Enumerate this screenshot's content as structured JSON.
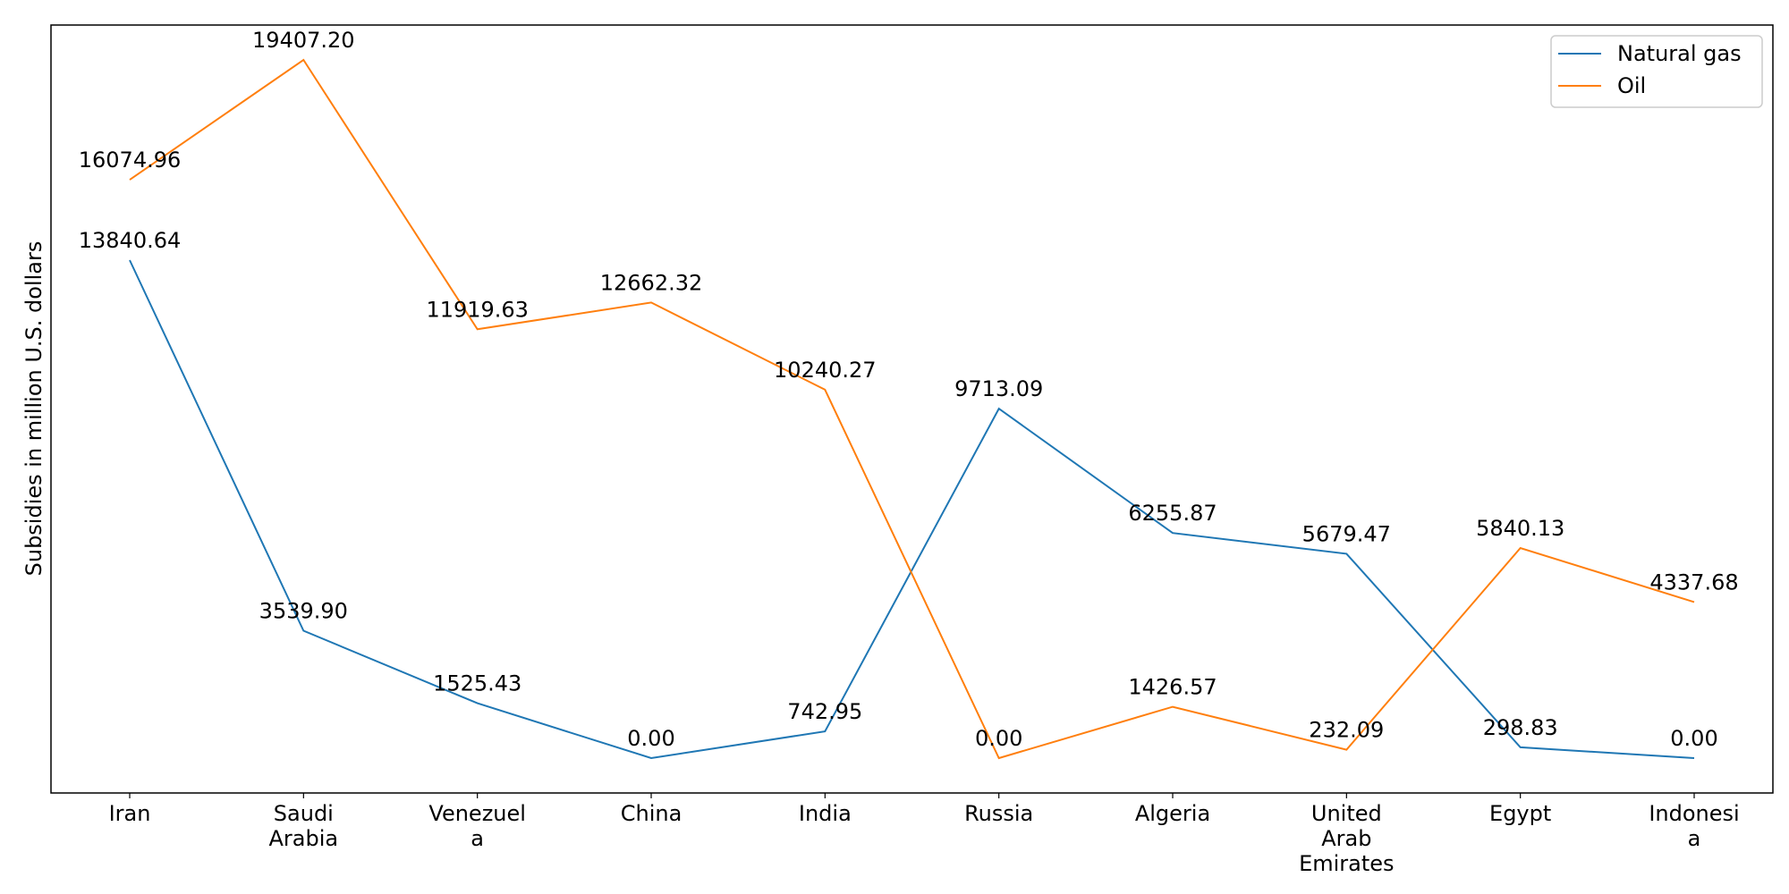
{
  "chart_data": {
    "type": "line",
    "title": "",
    "xlabel": "",
    "ylabel": "Subsidies in million U.S. dollars",
    "categories": [
      "Iran",
      "Saudi Arabia",
      "Venezuela",
      "China",
      "India",
      "Russia",
      "Algeria",
      "United Arab Emirates",
      "Egypt",
      "Indonesia"
    ],
    "category_lines": [
      [
        "Iran"
      ],
      [
        "Saudi",
        "Arabia"
      ],
      [
        "Venezuel",
        "a"
      ],
      [
        "China"
      ],
      [
        "India"
      ],
      [
        "Russia"
      ],
      [
        "Algeria"
      ],
      [
        "United",
        "Arab",
        "Emirates"
      ],
      [
        "Egypt"
      ],
      [
        "Indonesi",
        "a"
      ]
    ],
    "series": [
      {
        "name": "Natural gas",
        "color": "#1f77b4",
        "values": [
          13840.64,
          3539.9,
          1525.43,
          0.0,
          742.95,
          9713.09,
          6255.87,
          5679.47,
          298.83,
          0.0
        ],
        "labels": [
          "13840.64",
          "3539.90",
          "1525.43",
          "0.00",
          "742.95",
          "9713.09",
          "6255.87",
          "5679.47",
          "298.83",
          "0.00"
        ]
      },
      {
        "name": "Oil",
        "color": "#ff7f0e",
        "values": [
          16074.96,
          19407.2,
          11919.63,
          12662.32,
          10240.27,
          0.0,
          1426.57,
          232.09,
          5840.13,
          4337.68
        ],
        "labels": [
          "16074.96",
          "19407.20",
          "11919.63",
          "12662.32",
          "10240.27",
          "0.00",
          "1426.57",
          "232.09",
          "5840.13",
          "4337.68"
        ]
      }
    ],
    "ylim": [
      -970.36,
      20377.56
    ],
    "grid": false,
    "yticks_shown": false,
    "legend_position": "top-right"
  }
}
